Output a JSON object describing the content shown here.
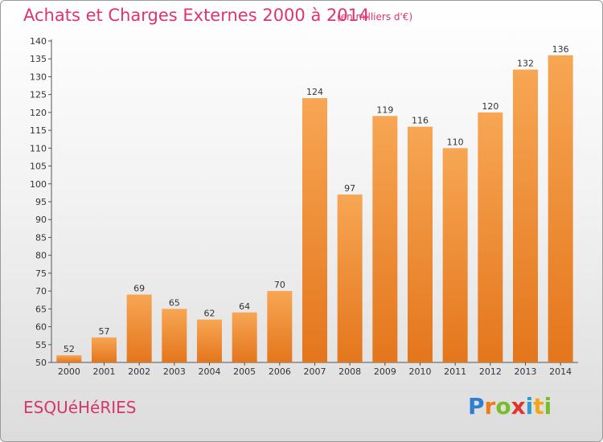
{
  "header": {
    "title": "Achats et Charges Externes 2000 à 2014",
    "subtitle": "(en milliers d'€)"
  },
  "footer": {
    "commune": "ESQUéHéRIES",
    "logo": "Proxiti"
  },
  "colors": {
    "title": "#e0336f",
    "bar_light": "#f7a654",
    "bar_dark": "#e4761c",
    "logo_letters": [
      "#2f7fd1",
      "#f07a1a",
      "#7abd2c",
      "#e2342f",
      "#2f9bd1",
      "#f0a81a",
      "#7abd2c"
    ]
  },
  "chart_data": {
    "type": "bar",
    "title": "Achats et Charges Externes 2000 à 2014",
    "xlabel": "",
    "ylabel": "",
    "categories": [
      "2000",
      "2001",
      "2002",
      "2003",
      "2004",
      "2005",
      "2006",
      "2007",
      "2008",
      "2009",
      "2010",
      "2011",
      "2012",
      "2013",
      "2014"
    ],
    "values": [
      52,
      57,
      69,
      65,
      62,
      64,
      70,
      124,
      97,
      119,
      116,
      110,
      120,
      132,
      136
    ],
    "ylim": [
      50,
      140
    ],
    "yticks": [
      50,
      55,
      60,
      65,
      70,
      75,
      80,
      85,
      90,
      95,
      100,
      105,
      110,
      115,
      120,
      125,
      130,
      135,
      140
    ],
    "grid": false,
    "legend": "none"
  }
}
